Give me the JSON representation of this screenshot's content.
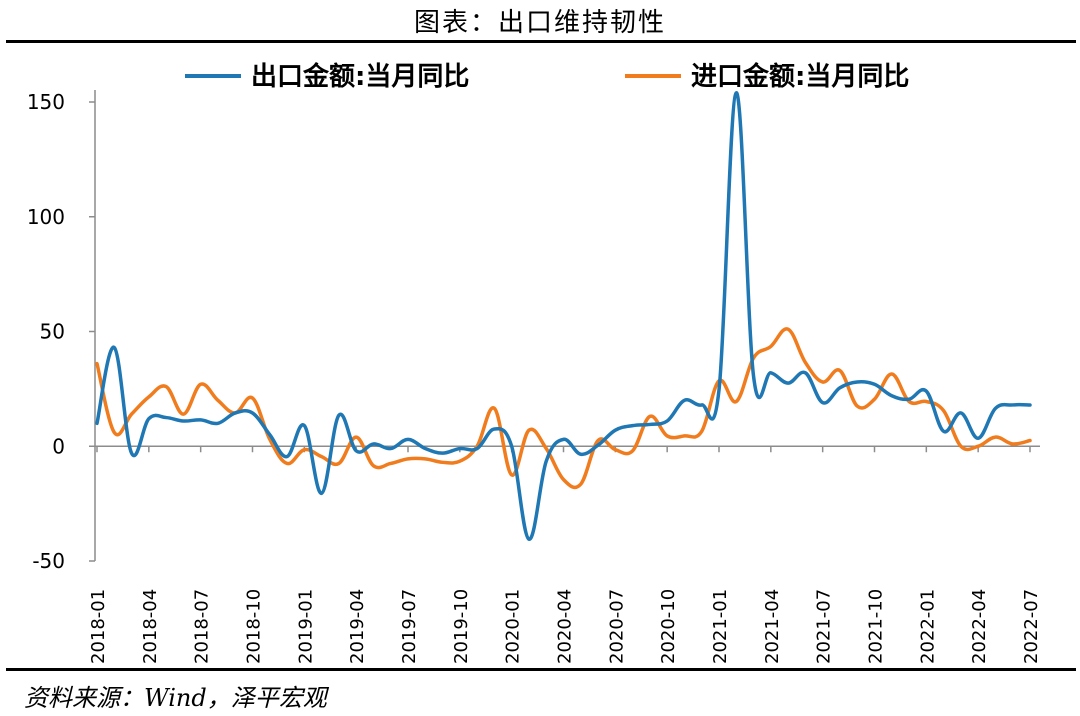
{
  "header": {
    "title": "图表：出口维持韧性"
  },
  "footer": {
    "source": "资料来源：Wind，泽平宏观"
  },
  "chart_data": {
    "type": "line",
    "title": "图表：出口维持韧性",
    "xlabel": "",
    "ylabel": "",
    "ylim": [
      -50,
      150
    ],
    "yticks": [
      -50,
      0,
      50,
      100,
      150
    ],
    "x_tick_labels": [
      "2018-01",
      "2018-04",
      "2018-07",
      "2018-10",
      "2019-01",
      "2019-04",
      "2019-07",
      "2019-10",
      "2020-01",
      "2020-04",
      "2020-07",
      "2020-10",
      "2021-01",
      "2021-04",
      "2021-07",
      "2021-10",
      "2022-01",
      "2022-04",
      "2022-07"
    ],
    "x": [
      "2018-01",
      "2018-02",
      "2018-03",
      "2018-04",
      "2018-05",
      "2018-06",
      "2018-07",
      "2018-08",
      "2018-09",
      "2018-10",
      "2018-11",
      "2018-12",
      "2019-01",
      "2019-02",
      "2019-03",
      "2019-04",
      "2019-05",
      "2019-06",
      "2019-07",
      "2019-08",
      "2019-09",
      "2019-10",
      "2019-11",
      "2019-12",
      "2020-01",
      "2020-02",
      "2020-03",
      "2020-04",
      "2020-05",
      "2020-06",
      "2020-07",
      "2020-08",
      "2020-09",
      "2020-10",
      "2020-11",
      "2020-12",
      "2021-01",
      "2021-02",
      "2021-03",
      "2021-04",
      "2021-05",
      "2021-06",
      "2021-07",
      "2021-08",
      "2021-09",
      "2021-10",
      "2021-11",
      "2021-12",
      "2022-01",
      "2022-02",
      "2022-03",
      "2022-04",
      "2022-05",
      "2022-06",
      "2022-07"
    ],
    "grid": false,
    "legend_position": "top",
    "series": [
      {
        "name": "出口金额:当月同比",
        "color": "#1f77b4",
        "values": [
          10.0,
          43.0,
          -3.0,
          12.0,
          12.5,
          11.0,
          11.5,
          10.0,
          14.5,
          14.5,
          5.0,
          -4.5,
          9.0,
          -20.5,
          13.5,
          -2.0,
          1.0,
          -1.0,
          3.0,
          -1.0,
          -3.0,
          -1.0,
          -1.0,
          7.5,
          0.0,
          -40.5,
          -6.5,
          3.0,
          -3.5,
          0.5,
          7.0,
          9.0,
          9.5,
          11.0,
          20.0,
          18.0,
          24.5,
          154.0,
          30.5,
          32.0,
          27.5,
          32.0,
          19.0,
          25.5,
          28.0,
          27.0,
          22.0,
          20.5,
          24.0,
          6.5,
          14.5,
          3.5,
          16.5,
          18.0,
          18.0
        ]
      },
      {
        "name": "进口金额:当月同比",
        "color": "#f07c1e",
        "values": [
          36.0,
          6.0,
          14.0,
          21.5,
          26.0,
          14.0,
          27.0,
          20.0,
          14.5,
          21.0,
          3.0,
          -7.5,
          -1.5,
          -4.5,
          -7.5,
          4.0,
          -8.5,
          -7.5,
          -5.5,
          -5.5,
          -7.0,
          -6.5,
          0.0,
          16.5,
          -12.5,
          7.0,
          -1.0,
          -14.5,
          -16.5,
          2.5,
          -1.5,
          -2.0,
          13.0,
          4.5,
          4.5,
          6.5,
          28.5,
          19.5,
          38.5,
          43.5,
          51.0,
          36.5,
          28.0,
          33.0,
          17.5,
          20.5,
          31.5,
          19.5,
          19.5,
          15.5,
          0.0,
          0.0,
          4.0,
          1.0,
          2.5
        ]
      }
    ]
  }
}
